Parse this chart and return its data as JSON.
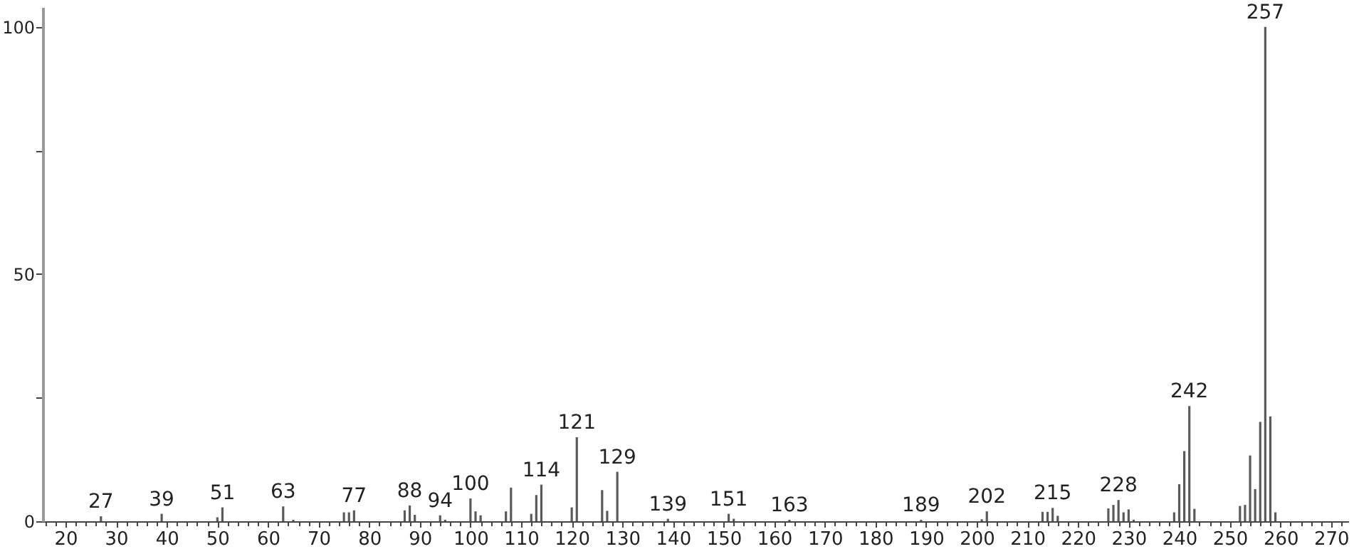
{
  "chart_data": {
    "type": "bar",
    "color": "#5a5a5a",
    "x": [
      27,
      39,
      50,
      51,
      63,
      65,
      75,
      76,
      77,
      87,
      88,
      89,
      94,
      95,
      100,
      101,
      102,
      107,
      108,
      112,
      113,
      114,
      120,
      121,
      126,
      127,
      129,
      139,
      151,
      152,
      163,
      189,
      201,
      202,
      213,
      214,
      215,
      216,
      226,
      227,
      228,
      229,
      230,
      231,
      239,
      240,
      241,
      242,
      243,
      252,
      253,
      254,
      255,
      256,
      257,
      258,
      259
    ],
    "values": [
      1,
      1.5,
      0.8,
      2.8,
      3,
      0.3,
      1.8,
      1.8,
      2.2,
      2.2,
      3.2,
      1.3,
      1.2,
      0.3,
      4.6,
      2,
      1.2,
      2,
      6.8,
      1.5,
      5.3,
      7.4,
      2.8,
      17,
      6.3,
      2.1,
      10,
      0.5,
      1.5,
      0.5,
      0.3,
      0.3,
      0.4,
      2,
      1.9,
      1.9,
      2.7,
      1.1,
      2.6,
      3.3,
      4.3,
      1.8,
      2.4,
      0.3,
      1.8,
      7.5,
      14.2,
      23.3,
      2.5,
      3.1,
      3.3,
      13.3,
      6.5,
      20.1,
      100,
      21.2,
      1.8
    ],
    "xlim": [
      15.5,
      273.4
    ],
    "ylim": [
      0,
      104
    ],
    "yticks": [
      0,
      {
        "value": 25,
        "label": null
      },
      50,
      {
        "value": 75,
        "label": null
      },
      100
    ],
    "xticks": [
      {
        "value": 16,
        "label": null
      },
      {
        "value": 18,
        "label": null
      },
      20,
      {
        "value": 22,
        "label": null
      },
      {
        "value": 24,
        "label": null
      },
      {
        "value": 26,
        "label": null
      },
      {
        "value": 28,
        "label": null
      },
      30,
      {
        "value": 32,
        "label": null
      },
      {
        "value": 34,
        "label": null
      },
      {
        "value": 36,
        "label": null
      },
      {
        "value": 38,
        "label": null
      },
      40,
      {
        "value": 42,
        "label": null
      },
      {
        "value": 44,
        "label": null
      },
      {
        "value": 46,
        "label": null
      },
      {
        "value": 48,
        "label": null
      },
      50,
      {
        "value": 52,
        "label": null
      },
      {
        "value": 54,
        "label": null
      },
      {
        "value": 56,
        "label": null
      },
      {
        "value": 58,
        "label": null
      },
      60,
      {
        "value": 62,
        "label": null
      },
      {
        "value": 64,
        "label": null
      },
      {
        "value": 66,
        "label": null
      },
      {
        "value": 68,
        "label": null
      },
      70,
      {
        "value": 72,
        "label": null
      },
      {
        "value": 74,
        "label": null
      },
      {
        "value": 76,
        "label": null
      },
      {
        "value": 78,
        "label": null
      },
      80,
      {
        "value": 82,
        "label": null
      },
      {
        "value": 84,
        "label": null
      },
      {
        "value": 86,
        "label": null
      },
      {
        "value": 88,
        "label": null
      },
      90,
      {
        "value": 92,
        "label": null
      },
      {
        "value": 94,
        "label": null
      },
      {
        "value": 96,
        "label": null
      },
      {
        "value": 98,
        "label": null
      },
      100,
      {
        "value": 102,
        "label": null
      },
      {
        "value": 104,
        "label": null
      },
      {
        "value": 106,
        "label": null
      },
      {
        "value": 108,
        "label": null
      },
      110,
      {
        "value": 112,
        "label": null
      },
      {
        "value": 114,
        "label": null
      },
      {
        "value": 116,
        "label": null
      },
      {
        "value": 118,
        "label": null
      },
      120,
      {
        "value": 122,
        "label": null
      },
      {
        "value": 124,
        "label": null
      },
      {
        "value": 126,
        "label": null
      },
      {
        "value": 128,
        "label": null
      },
      130,
      {
        "value": 132,
        "label": null
      },
      {
        "value": 134,
        "label": null
      },
      {
        "value": 136,
        "label": null
      },
      {
        "value": 138,
        "label": null
      },
      140,
      {
        "value": 142,
        "label": null
      },
      {
        "value": 144,
        "label": null
      },
      {
        "value": 146,
        "label": null
      },
      {
        "value": 148,
        "label": null
      },
      150,
      {
        "value": 152,
        "label": null
      },
      {
        "value": 154,
        "label": null
      },
      {
        "value": 156,
        "label": null
      },
      {
        "value": 158,
        "label": null
      },
      160,
      {
        "value": 162,
        "label": null
      },
      {
        "value": 164,
        "label": null
      },
      {
        "value": 166,
        "label": null
      },
      {
        "value": 168,
        "label": null
      },
      170,
      {
        "value": 172,
        "label": null
      },
      {
        "value": 174,
        "label": null
      },
      {
        "value": 176,
        "label": null
      },
      {
        "value": 178,
        "label": null
      },
      180,
      {
        "value": 182,
        "label": null
      },
      {
        "value": 184,
        "label": null
      },
      {
        "value": 186,
        "label": null
      },
      {
        "value": 188,
        "label": null
      },
      190,
      {
        "value": 192,
        "label": null
      },
      {
        "value": 194,
        "label": null
      },
      {
        "value": 196,
        "label": null
      },
      {
        "value": 198,
        "label": null
      },
      200,
      {
        "value": 202,
        "label": null
      },
      {
        "value": 204,
        "label": null
      },
      {
        "value": 206,
        "label": null
      },
      {
        "value": 208,
        "label": null
      },
      210,
      {
        "value": 212,
        "label": null
      },
      {
        "value": 214,
        "label": null
      },
      {
        "value": 216,
        "label": null
      },
      {
        "value": 218,
        "label": null
      },
      220,
      {
        "value": 222,
        "label": null
      },
      {
        "value": 224,
        "label": null
      },
      {
        "value": 226,
        "label": null
      },
      {
        "value": 228,
        "label": null
      },
      230,
      {
        "value": 232,
        "label": null
      },
      {
        "value": 234,
        "label": null
      },
      {
        "value": 236,
        "label": null
      },
      {
        "value": 238,
        "label": null
      },
      240,
      {
        "value": 242,
        "label": null
      },
      {
        "value": 244,
        "label": null
      },
      {
        "value": 246,
        "label": null
      },
      {
        "value": 248,
        "label": null
      },
      250,
      {
        "value": 252,
        "label": null
      },
      {
        "value": 254,
        "label": null
      },
      {
        "value": 256,
        "label": null
      },
      {
        "value": 258,
        "label": null
      },
      260,
      {
        "value": 262,
        "label": null
      },
      {
        "value": 264,
        "label": null
      },
      {
        "value": 266,
        "label": null
      },
      {
        "value": 268,
        "label": null
      },
      270,
      {
        "value": 272,
        "label": null
      }
    ],
    "grid": false,
    "annotations": [
      {
        "text": "27",
        "x": 27,
        "y": 1
      },
      {
        "text": "39",
        "x": 39,
        "y": 1.5
      },
      {
        "text": "51",
        "x": 51,
        "y": 2.8
      },
      {
        "text": "63",
        "x": 63,
        "y": 3
      },
      {
        "text": "77",
        "x": 77,
        "y": 2.2
      },
      {
        "text": "88",
        "x": 88,
        "y": 3.2
      },
      {
        "text": "94",
        "x": 94,
        "y": 1.2
      },
      {
        "text": "100",
        "x": 100,
        "y": 4.6
      },
      {
        "text": "114",
        "x": 114,
        "y": 7.4
      },
      {
        "text": "121",
        "x": 121,
        "y": 17
      },
      {
        "text": "129",
        "x": 129,
        "y": 10
      },
      {
        "text": "139",
        "x": 139,
        "y": 0.5
      },
      {
        "text": "151",
        "x": 151,
        "y": 1.5
      },
      {
        "text": "163",
        "x": 163,
        "y": 0.3
      },
      {
        "text": "189",
        "x": 189,
        "y": 0.3
      },
      {
        "text": "202",
        "x": 202,
        "y": 2
      },
      {
        "text": "215",
        "x": 215,
        "y": 2.7
      },
      {
        "text": "228",
        "x": 228,
        "y": 4.3
      },
      {
        "text": "242",
        "x": 242,
        "y": 23.3
      },
      {
        "text": "257",
        "x": 257,
        "y": 100
      }
    ]
  }
}
